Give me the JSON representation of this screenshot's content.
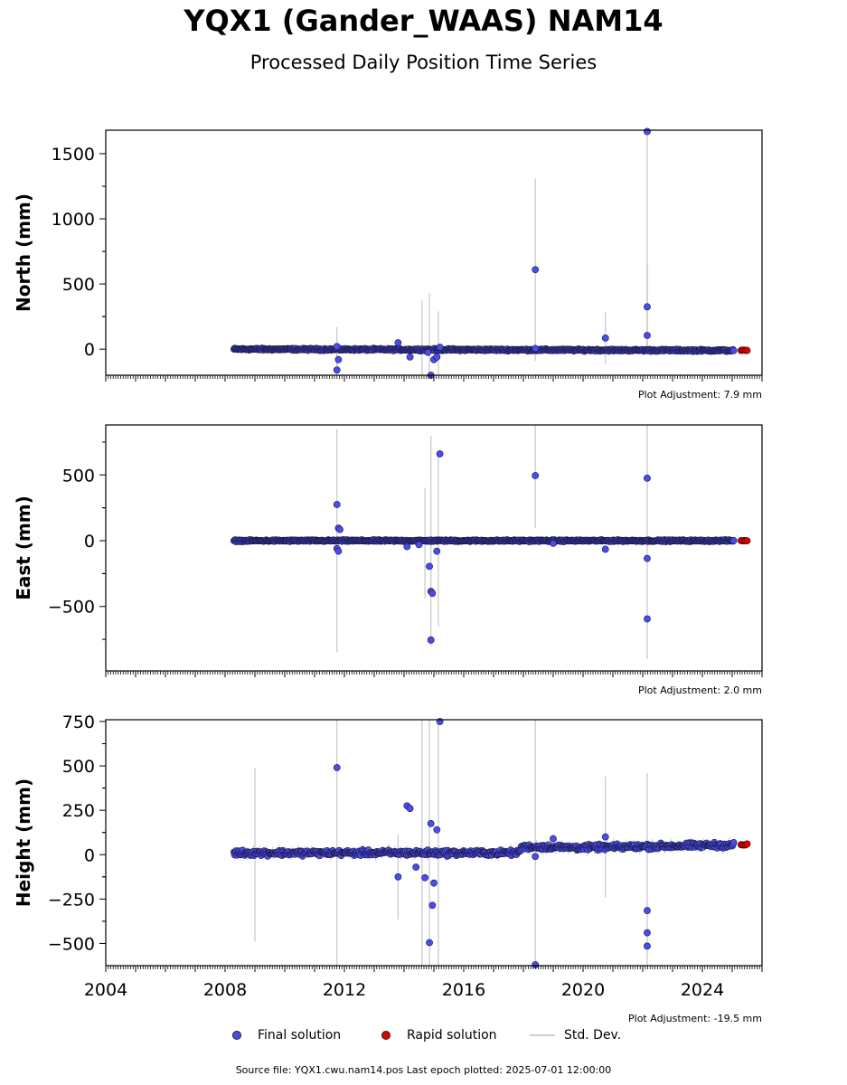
{
  "title": "YQX1 (Gander_WAAS) NAM14",
  "subtitle": "Processed Daily Position Time Series",
  "legend": {
    "final": "Final solution",
    "rapid": "Rapid solution",
    "std": "Std. Dev."
  },
  "footer": "Source file: YQX1.cwu.nam14.pos  Last epoch plotted: 2025-07-01 12:00:00",
  "colors": {
    "final": "#4b4bf0",
    "rapid": "#e00000",
    "std": "#b0b0b0"
  },
  "chart_data": [
    {
      "type": "scatter",
      "ylabel": "North (mm)",
      "adjustment": "Plot Adjustment: 7.9 mm",
      "xlim": [
        2004,
        2026
      ],
      "ylim": [
        -200,
        1680
      ],
      "yticks": [
        0,
        500,
        1000,
        1500
      ],
      "final_range": [
        2008.3,
        2025.05
      ],
      "rapid_range": [
        2025.3,
        2025.5
      ],
      "trend": [
        [
          2008.3,
          0
        ],
        [
          2017.5,
          -5
        ],
        [
          2025.1,
          -10
        ]
      ],
      "noise": 6,
      "outliers": [
        [
          2011.75,
          -160
        ],
        [
          2011.8,
          -80
        ],
        [
          2011.75,
          20
        ],
        [
          2013.8,
          50
        ],
        [
          2014.2,
          -60
        ],
        [
          2014.8,
          -25
        ],
        [
          2014.9,
          -200
        ],
        [
          2015.0,
          -80
        ],
        [
          2015.1,
          -60
        ],
        [
          2015.2,
          15
        ],
        [
          2018.4,
          610
        ],
        [
          2018.4,
          5
        ],
        [
          2020.75,
          85
        ],
        [
          2022.15,
          1670
        ],
        [
          2022.15,
          325
        ],
        [
          2022.15,
          105
        ]
      ],
      "std_bars": [
        [
          2011.75,
          -160,
          180
        ],
        [
          2011.75,
          20,
          150
        ],
        [
          2014.6,
          -20,
          400
        ],
        [
          2014.85,
          -40,
          470
        ],
        [
          2015.15,
          0,
          290
        ],
        [
          2018.4,
          610,
          700
        ],
        [
          2020.75,
          85,
          200
        ],
        [
          2022.15,
          1670,
          1680
        ],
        [
          2022.15,
          325,
          330
        ]
      ]
    },
    {
      "type": "scatter",
      "ylabel": "East (mm)",
      "adjustment": "Plot Adjustment: 2.0 mm",
      "xlim": [
        2004,
        2026
      ],
      "ylim": [
        -990,
        880
      ],
      "yticks": [
        -500,
        0,
        500
      ],
      "final_range": [
        2008.3,
        2025.05
      ],
      "rapid_range": [
        2025.3,
        2025.5
      ],
      "trend": [
        [
          2008.3,
          0
        ],
        [
          2025.1,
          0
        ]
      ],
      "noise": 5,
      "outliers": [
        [
          2011.75,
          275
        ],
        [
          2011.8,
          95
        ],
        [
          2011.85,
          85
        ],
        [
          2011.75,
          -60
        ],
        [
          2011.8,
          -80
        ],
        [
          2014.1,
          -45
        ],
        [
          2014.5,
          -30
        ],
        [
          2014.85,
          -195
        ],
        [
          2014.9,
          -385
        ],
        [
          2014.95,
          -400
        ],
        [
          2014.9,
          -755
        ],
        [
          2015.1,
          -80
        ],
        [
          2015.2,
          660
        ],
        [
          2018.4,
          495
        ],
        [
          2019.0,
          -20
        ],
        [
          2020.75,
          -65
        ],
        [
          2022.15,
          475
        ],
        [
          2022.15,
          -135
        ],
        [
          2022.15,
          -595
        ]
      ],
      "std_bars": [
        [
          2011.75,
          0,
          850
        ],
        [
          2014.9,
          0,
          800
        ],
        [
          2014.7,
          -20,
          420
        ],
        [
          2015.15,
          0,
          650
        ],
        [
          2018.4,
          495,
          400
        ],
        [
          2022.15,
          0,
          900
        ]
      ]
    },
    {
      "type": "scatter",
      "ylabel": "Height (mm)",
      "adjustment": "Plot Adjustment: -19.5 mm",
      "xlim": [
        2004,
        2026
      ],
      "ylim": [
        -625,
        760
      ],
      "yticks": [
        -500,
        -250,
        0,
        250,
        500,
        750
      ],
      "final_range": [
        2008.3,
        2025.05
      ],
      "rapid_range": [
        2025.3,
        2025.5
      ],
      "trend": [
        [
          2008.3,
          10
        ],
        [
          2017.8,
          10
        ],
        [
          2018.0,
          45
        ],
        [
          2020.0,
          40
        ],
        [
          2025.1,
          55
        ]
      ],
      "noise": 12,
      "outliers": [
        [
          2011.75,
          490
        ],
        [
          2013.8,
          -125
        ],
        [
          2014.1,
          275
        ],
        [
          2014.2,
          260
        ],
        [
          2014.4,
          -70
        ],
        [
          2014.7,
          -130
        ],
        [
          2014.85,
          -495
        ],
        [
          2014.9,
          175
        ],
        [
          2014.95,
          -285
        ],
        [
          2015.0,
          -160
        ],
        [
          2015.1,
          140
        ],
        [
          2015.2,
          750
        ],
        [
          2018.4,
          -10
        ],
        [
          2018.4,
          -620
        ],
        [
          2019.0,
          90
        ],
        [
          2020.75,
          100
        ],
        [
          2022.15,
          -315
        ],
        [
          2022.15,
          -440
        ],
        [
          2022.15,
          -515
        ]
      ],
      "std_bars": [
        [
          2009.0,
          0,
          490
        ],
        [
          2011.75,
          0,
          760
        ],
        [
          2013.8,
          -125,
          240
        ],
        [
          2014.6,
          0,
          760
        ],
        [
          2014.85,
          0,
          760
        ],
        [
          2015.15,
          0,
          760
        ],
        [
          2018.4,
          0,
          760
        ],
        [
          2020.75,
          100,
          340
        ],
        [
          2022.15,
          -300,
          760
        ]
      ]
    }
  ],
  "xticks": [
    "2004",
    "2008",
    "2012",
    "2016",
    "2020",
    "2024"
  ]
}
